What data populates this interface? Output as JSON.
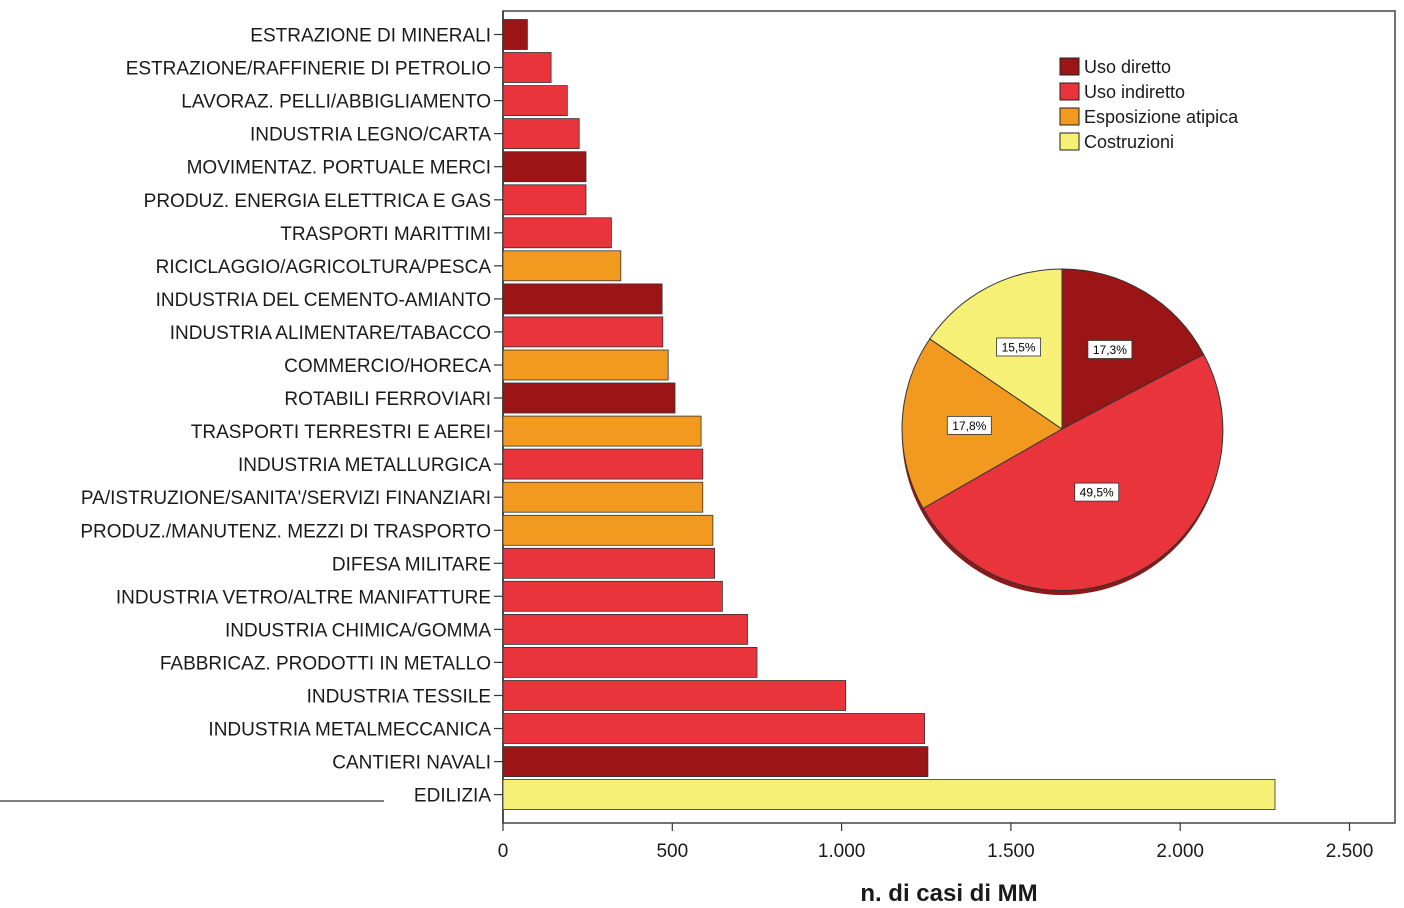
{
  "chart_data": [
    {
      "type": "bar",
      "orientation": "horizontal",
      "xlabel": "n. di casi di MM",
      "ylabel": "",
      "xlim": [
        0,
        2600
      ],
      "x_ticks": [
        0,
        500,
        1000,
        1500,
        2000,
        2500
      ],
      "x_tick_labels": [
        "0",
        "500",
        "1.000",
        "1.500",
        "2.000",
        "2.500"
      ],
      "grid": false,
      "categories": [
        "ESTRAZIONE DI MINERALI",
        "ESTRAZIONE/RAFFINERIE DI PETROLIO",
        "LAVORAZ. PELLI/ABBIGLIAMENTO",
        "INDUSTRIA LEGNO/CARTA",
        "MOVIMENTAZ. PORTUALE MERCI",
        "PRODUZ. ENERGIA ELETTRICA E GAS",
        "TRASPORTI MARITTIMI",
        "RICICLAGGIO/AGRICOLTURA/PESCA",
        "INDUSTRIA DEL CEMENTO-AMIANTO",
        "INDUSTRIA ALIMENTARE/TABACCO",
        "COMMERCIO/HORECA",
        "ROTABILI FERROVIARI",
        "TRASPORTI TERRESTRI E AEREI",
        "INDUSTRIA METALLURGICA",
        "PA/ISTRUZIONE/SANITA'/SERVIZI FINANZIARI",
        "PRODUZ./MANUTENZ. MEZZI DI TRASPORTO",
        "DIFESA MILITARE",
        "INDUSTRIA VETRO/ALTRE MANIFATTURE",
        "INDUSTRIA CHIMICA/GOMMA",
        "FABBRICAZ. PRODOTTI IN METALLO",
        "INDUSTRIA TESSILE",
        "INDUSTRIA METALMECCANICA",
        "CANTIERI NAVALI",
        "EDILIZIA"
      ],
      "values": [
        72,
        142,
        190,
        225,
        245,
        245,
        320,
        348,
        470,
        472,
        488,
        508,
        585,
        590,
        590,
        620,
        625,
        648,
        722,
        750,
        1012,
        1245,
        1255,
        2280
      ],
      "groups": [
        "Uso diretto",
        "Uso indiretto",
        "Uso indiretto",
        "Uso indiretto",
        "Uso diretto",
        "Uso indiretto",
        "Uso indiretto",
        "Esposizione atipica",
        "Uso diretto",
        "Uso indiretto",
        "Esposizione atipica",
        "Uso diretto",
        "Esposizione atipica",
        "Uso indiretto",
        "Esposizione atipica",
        "Esposizione atipica",
        "Uso indiretto",
        "Uso indiretto",
        "Uso indiretto",
        "Uso indiretto",
        "Uso indiretto",
        "Uso indiretto",
        "Uso diretto",
        "Costruzioni"
      ],
      "legend": {
        "placement": "top-right",
        "entries": [
          "Uso diretto",
          "Uso indiretto",
          "Esposizione atipica",
          "Costruzioni"
        ]
      },
      "colors": {
        "Uso diretto": "#9b1516",
        "Uso indiretto": "#e8343a",
        "Esposizione atipica": "#f29a1f",
        "Costruzioni": "#f6f077"
      }
    },
    {
      "type": "pie",
      "slices": [
        {
          "group": "Uso diretto",
          "value": 17.3,
          "label": "17,3%"
        },
        {
          "group": "Uso indiretto",
          "value": 49.5,
          "label": "49,5%"
        },
        {
          "group": "Esposizione atipica",
          "value": 17.8,
          "label": "17,8%"
        },
        {
          "group": "Costruzioni",
          "value": 15.5,
          "label": "15,5%"
        }
      ]
    }
  ]
}
